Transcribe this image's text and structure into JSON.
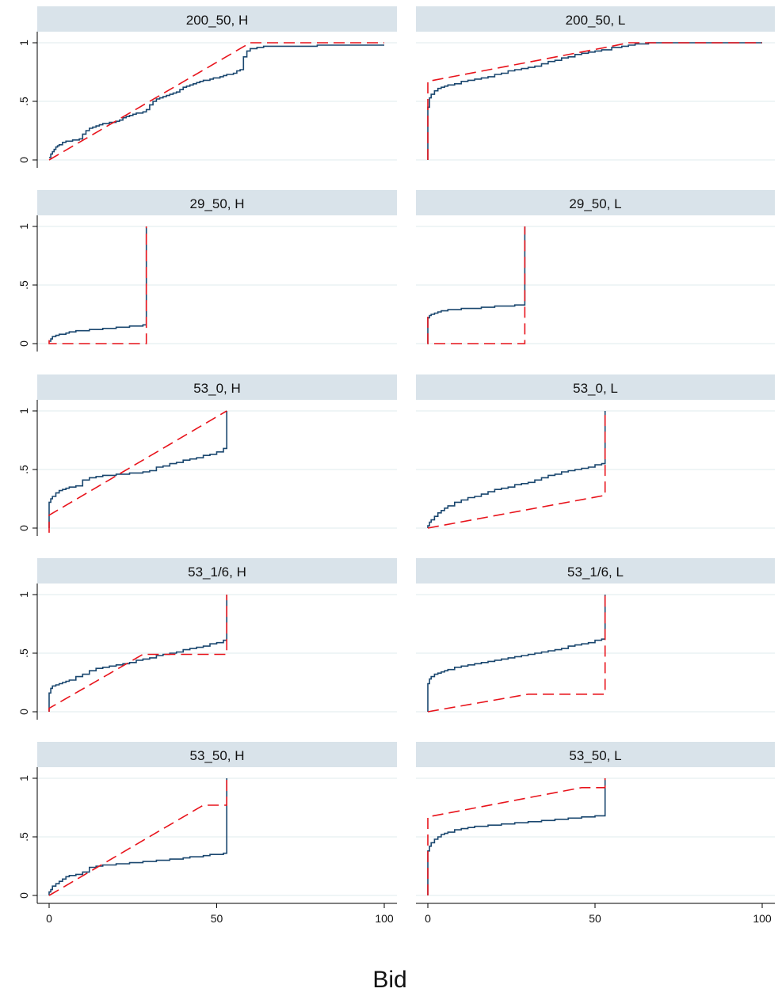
{
  "chart_data": {
    "type": "line",
    "xlabel": "Bid",
    "xlim": [
      0,
      100
    ],
    "ylim": [
      0,
      1
    ],
    "x_ticks": [
      "0",
      "50",
      "100"
    ],
    "x_tick_values": [
      0,
      50,
      100
    ],
    "y_ticks": [
      "0",
      ".5",
      "1"
    ],
    "y_tick_values": [
      0,
      0.5,
      1
    ],
    "grid": true,
    "colors": {
      "empirical": "#1a476f",
      "predicted": "#e8141c",
      "header_bg": "#d9e3ea",
      "grid": "#eaf2f3"
    },
    "panels": [
      {
        "title": "200_50, H",
        "series": [
          {
            "style": "solid",
            "x": [
              0,
              0.5,
              1,
              1.5,
              2,
              2.5,
              3,
              4,
              5,
              6,
              7,
              8,
              9,
              10,
              11,
              12,
              13,
              14,
              15,
              16,
              17,
              18,
              19,
              20,
              21,
              22,
              23,
              24,
              25,
              26,
              27,
              28,
              29,
              30,
              31,
              32,
              33,
              34,
              35,
              36,
              37,
              38,
              39,
              40,
              41,
              42,
              43,
              44,
              45,
              46,
              47,
              48,
              49,
              50,
              51,
              52,
              53,
              54,
              55,
              56,
              57,
              58,
              59,
              60,
              62,
              64,
              66,
              70,
              75,
              80,
              85,
              90,
              95,
              100
            ],
            "y": [
              0.02,
              0.05,
              0.07,
              0.09,
              0.11,
              0.12,
              0.13,
              0.15,
              0.16,
              0.16,
              0.17,
              0.17,
              0.18,
              0.22,
              0.25,
              0.27,
              0.28,
              0.29,
              0.3,
              0.31,
              0.31,
              0.32,
              0.32,
              0.33,
              0.34,
              0.36,
              0.37,
              0.38,
              0.39,
              0.4,
              0.4,
              0.41,
              0.43,
              0.47,
              0.5,
              0.52,
              0.53,
              0.54,
              0.55,
              0.56,
              0.57,
              0.58,
              0.6,
              0.62,
              0.63,
              0.64,
              0.65,
              0.66,
              0.67,
              0.68,
              0.68,
              0.69,
              0.7,
              0.7,
              0.71,
              0.72,
              0.73,
              0.73,
              0.74,
              0.76,
              0.77,
              0.88,
              0.93,
              0.95,
              0.96,
              0.97,
              0.97,
              0.97,
              0.97,
              0.98,
              0.98,
              0.98,
              0.98,
              0.98
            ]
          },
          {
            "style": "dashed",
            "x": [
              0,
              60,
              100
            ],
            "y": [
              0,
              1,
              1
            ]
          }
        ]
      },
      {
        "title": "200_50, L",
        "series": [
          {
            "style": "solid",
            "x": [
              0,
              0,
              0.5,
              1,
              2,
              3,
              4,
              5,
              6,
              8,
              10,
              12,
              14,
              16,
              18,
              20,
              22,
              24,
              26,
              28,
              30,
              32,
              34,
              36,
              38,
              40,
              42,
              44,
              46,
              48,
              50,
              52,
              55,
              58,
              60,
              62,
              64,
              66,
              70,
              75,
              80,
              85,
              90,
              95,
              100
            ],
            "y": [
              0,
              0.45,
              0.53,
              0.56,
              0.59,
              0.61,
              0.62,
              0.63,
              0.64,
              0.65,
              0.67,
              0.68,
              0.69,
              0.7,
              0.71,
              0.73,
              0.74,
              0.76,
              0.77,
              0.78,
              0.79,
              0.8,
              0.82,
              0.84,
              0.85,
              0.87,
              0.88,
              0.9,
              0.91,
              0.92,
              0.93,
              0.94,
              0.96,
              0.97,
              0.98,
              0.99,
              0.99,
              1,
              1,
              1,
              1,
              1,
              1,
              1,
              1
            ]
          },
          {
            "style": "dashed",
            "x": [
              0,
              0,
              55,
              60,
              100
            ],
            "y": [
              0,
              0.67,
              0.97,
              1,
              1
            ]
          }
        ]
      },
      {
        "title": "29_50, H",
        "series": [
          {
            "style": "solid",
            "x": [
              0,
              0.5,
              1,
              2,
              3,
              4,
              5,
              6,
              8,
              10,
              12,
              14,
              16,
              18,
              20,
              22,
              24,
              26,
              28,
              29,
              29
            ],
            "y": [
              0.02,
              0.04,
              0.06,
              0.07,
              0.08,
              0.08,
              0.09,
              0.1,
              0.11,
              0.11,
              0.12,
              0.12,
              0.13,
              0.13,
              0.14,
              0.14,
              0.15,
              0.15,
              0.16,
              0.17,
              1
            ]
          },
          {
            "style": "dashed",
            "x": [
              0,
              0,
              29,
              29
            ],
            "y": [
              0.03,
              0,
              0,
              1
            ]
          }
        ]
      },
      {
        "title": "29_50, L",
        "series": [
          {
            "style": "solid",
            "x": [
              0,
              0,
              0.5,
              1,
              2,
              3,
              4,
              6,
              8,
              10,
              12,
              14,
              16,
              18,
              20,
              22,
              24,
              26,
              28,
              29,
              29
            ],
            "y": [
              0,
              0.22,
              0.24,
              0.25,
              0.26,
              0.27,
              0.28,
              0.29,
              0.29,
              0.3,
              0.3,
              0.3,
              0.31,
              0.31,
              0.32,
              0.32,
              0.32,
              0.33,
              0.33,
              0.34,
              1
            ]
          },
          {
            "style": "dashed",
            "x": [
              0,
              0,
              29,
              29
            ],
            "y": [
              0.23,
              0,
              0,
              1
            ]
          }
        ]
      },
      {
        "title": "53_0, H",
        "series": [
          {
            "style": "solid",
            "x": [
              0,
              0,
              0.5,
              1,
              2,
              3,
              4,
              5,
              6,
              8,
              10,
              12,
              14,
              16,
              18,
              20,
              22,
              24,
              26,
              28,
              30,
              32,
              34,
              36,
              38,
              40,
              42,
              44,
              46,
              48,
              50,
              52,
              53,
              53
            ],
            "y": [
              0,
              0.22,
              0.25,
              0.27,
              0.3,
              0.32,
              0.33,
              0.34,
              0.35,
              0.36,
              0.41,
              0.43,
              0.44,
              0.45,
              0.45,
              0.46,
              0.46,
              0.47,
              0.47,
              0.48,
              0.49,
              0.52,
              0.53,
              0.55,
              0.56,
              0.58,
              0.59,
              0.6,
              0.62,
              0.63,
              0.65,
              0.68,
              0.7,
              1
            ]
          },
          {
            "style": "dashed",
            "x": [
              0,
              0,
              53
            ],
            "y": [
              -0.04,
              0.11,
              1
            ]
          }
        ]
      },
      {
        "title": "53_0, L",
        "series": [
          {
            "style": "solid",
            "x": [
              0,
              0,
              0.5,
              1,
              2,
              3,
              4,
              5,
              6,
              8,
              10,
              12,
              14,
              16,
              18,
              20,
              22,
              24,
              26,
              28,
              30,
              32,
              34,
              36,
              38,
              40,
              42,
              44,
              46,
              48,
              50,
              52,
              53,
              53
            ],
            "y": [
              0,
              0.02,
              0.05,
              0.07,
              0.1,
              0.13,
              0.15,
              0.17,
              0.19,
              0.22,
              0.24,
              0.26,
              0.27,
              0.29,
              0.31,
              0.33,
              0.34,
              0.35,
              0.37,
              0.38,
              0.39,
              0.41,
              0.43,
              0.45,
              0.46,
              0.48,
              0.49,
              0.5,
              0.51,
              0.52,
              0.54,
              0.55,
              0.56,
              1
            ]
          },
          {
            "style": "dashed",
            "x": [
              0,
              53,
              53
            ],
            "y": [
              0,
              0.28,
              1
            ]
          }
        ]
      },
      {
        "title": "53_1/6, H",
        "series": [
          {
            "style": "solid",
            "x": [
              0,
              0,
              0.5,
              1,
              2,
              3,
              4,
              5,
              6,
              8,
              10,
              12,
              14,
              16,
              18,
              20,
              22,
              24,
              26,
              28,
              30,
              32,
              34,
              36,
              38,
              40,
              42,
              44,
              46,
              48,
              50,
              52,
              53,
              53
            ],
            "y": [
              0,
              0.16,
              0.2,
              0.22,
              0.23,
              0.24,
              0.25,
              0.26,
              0.27,
              0.3,
              0.32,
              0.35,
              0.37,
              0.38,
              0.39,
              0.4,
              0.41,
              0.42,
              0.44,
              0.45,
              0.46,
              0.48,
              0.49,
              0.5,
              0.51,
              0.53,
              0.54,
              0.55,
              0.56,
              0.58,
              0.59,
              0.61,
              0.63,
              1
            ]
          },
          {
            "style": "dashed",
            "x": [
              0,
              0,
              28,
              53,
              53
            ],
            "y": [
              0,
              0.03,
              0.49,
              0.49,
              1
            ]
          }
        ]
      },
      {
        "title": "53_1/6, L",
        "series": [
          {
            "style": "solid",
            "x": [
              0,
              0,
              0.5,
              1,
              2,
              3,
              4,
              5,
              6,
              8,
              10,
              12,
              14,
              16,
              18,
              20,
              22,
              24,
              26,
              28,
              30,
              32,
              34,
              36,
              38,
              40,
              42,
              44,
              46,
              48,
              50,
              52,
              53,
              53
            ],
            "y": [
              0,
              0.24,
              0.28,
              0.3,
              0.32,
              0.33,
              0.34,
              0.35,
              0.36,
              0.38,
              0.39,
              0.4,
              0.41,
              0.42,
              0.43,
              0.44,
              0.45,
              0.46,
              0.47,
              0.48,
              0.49,
              0.5,
              0.51,
              0.52,
              0.53,
              0.54,
              0.56,
              0.57,
              0.58,
              0.59,
              0.61,
              0.62,
              0.64,
              1
            ]
          },
          {
            "style": "dashed",
            "x": [
              0,
              30,
              53,
              53
            ],
            "y": [
              0,
              0.15,
              0.15,
              1
            ]
          }
        ]
      },
      {
        "title": "53_50, H",
        "series": [
          {
            "style": "solid",
            "x": [
              0,
              0,
              0.5,
              1,
              2,
              3,
              4,
              5,
              6,
              8,
              10,
              12,
              14,
              16,
              18,
              20,
              22,
              24,
              26,
              28,
              30,
              32,
              34,
              36,
              38,
              40,
              42,
              44,
              46,
              48,
              50,
              52,
              53,
              53
            ],
            "y": [
              0,
              0.03,
              0.05,
              0.08,
              0.1,
              0.12,
              0.14,
              0.16,
              0.17,
              0.18,
              0.2,
              0.24,
              0.25,
              0.26,
              0.26,
              0.27,
              0.27,
              0.28,
              0.28,
              0.29,
              0.29,
              0.3,
              0.3,
              0.31,
              0.31,
              0.32,
              0.33,
              0.33,
              0.34,
              0.35,
              0.35,
              0.36,
              0.37,
              1
            ]
          },
          {
            "style": "dashed",
            "x": [
              0,
              46,
              53,
              53
            ],
            "y": [
              0,
              0.77,
              0.77,
              1
            ]
          }
        ]
      },
      {
        "title": "53_50, L",
        "series": [
          {
            "style": "solid",
            "x": [
              0,
              0,
              0.5,
              1,
              2,
              3,
              4,
              5,
              6,
              8,
              10,
              12,
              14,
              16,
              18,
              20,
              22,
              24,
              26,
              28,
              30,
              32,
              34,
              36,
              38,
              40,
              42,
              44,
              46,
              48,
              50,
              52,
              53,
              53
            ],
            "y": [
              0,
              0.38,
              0.42,
              0.45,
              0.48,
              0.5,
              0.52,
              0.53,
              0.54,
              0.56,
              0.57,
              0.58,
              0.59,
              0.59,
              0.6,
              0.6,
              0.61,
              0.61,
              0.62,
              0.62,
              0.63,
              0.63,
              0.64,
              0.64,
              0.65,
              0.65,
              0.66,
              0.66,
              0.67,
              0.67,
              0.68,
              0.68,
              0.69,
              1
            ]
          },
          {
            "style": "dashed",
            "x": [
              0,
              0,
              46,
              53,
              53
            ],
            "y": [
              0,
              0.67,
              0.92,
              0.92,
              1
            ]
          }
        ]
      }
    ]
  }
}
